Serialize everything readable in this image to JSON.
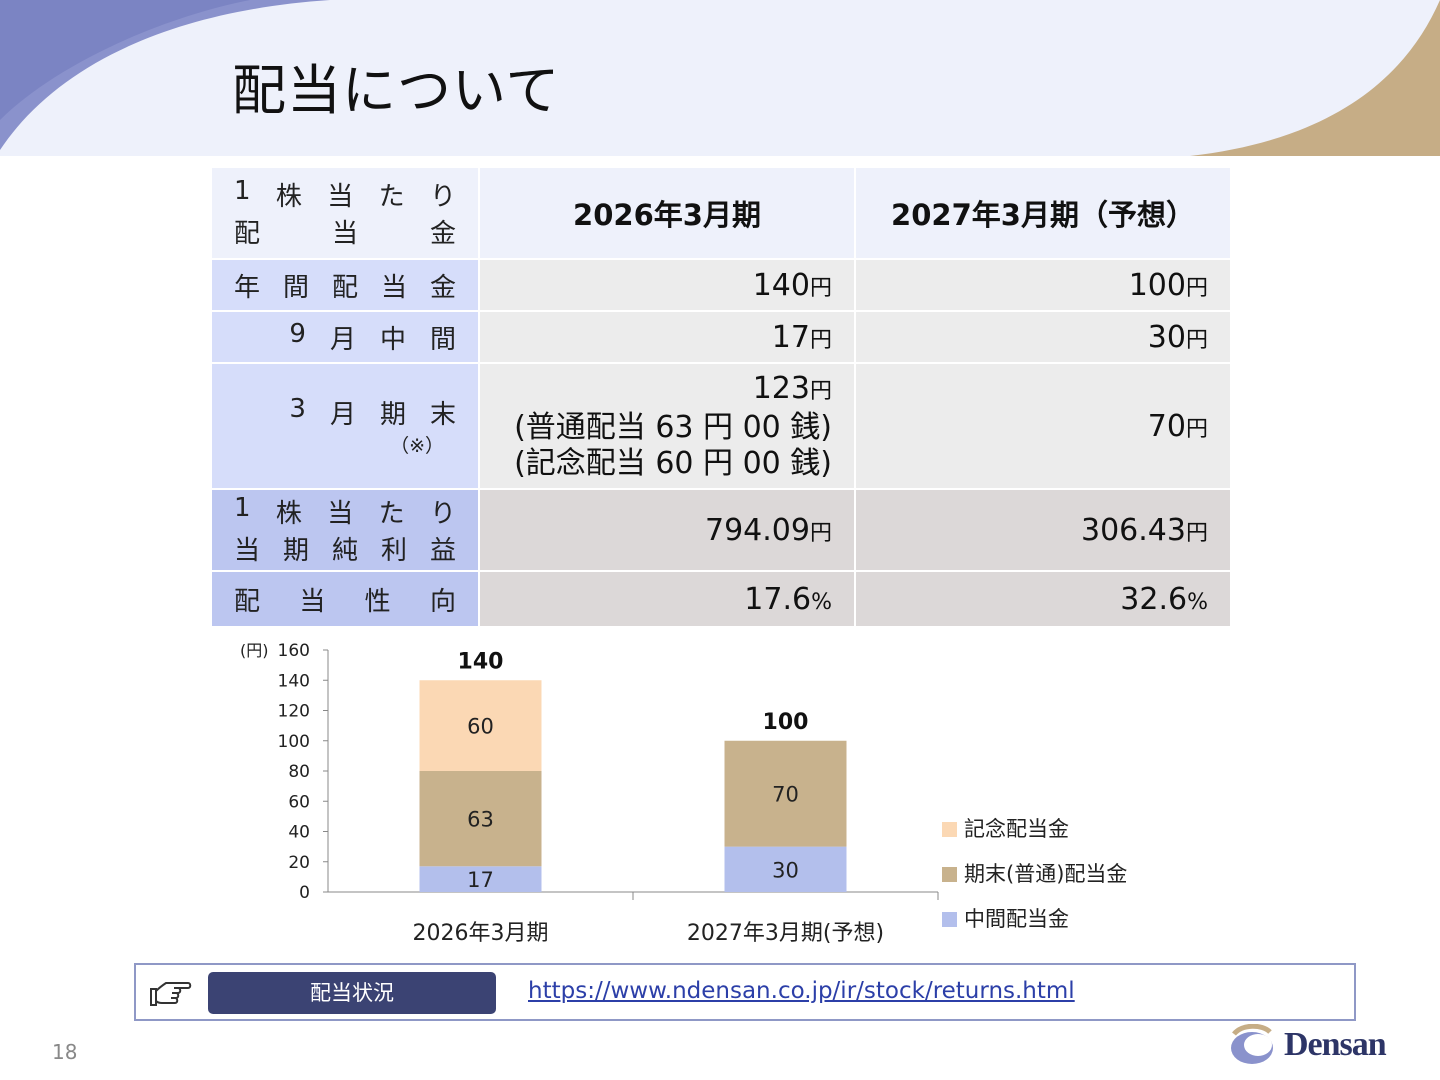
{
  "title": "配当について",
  "table": {
    "corner_line1": [
      "1",
      "株",
      "当",
      "た",
      "り"
    ],
    "corner_line2": [
      "配",
      "当",
      "金"
    ],
    "col1": "2026年3月期",
    "col2": "2027年3月期（予想）",
    "unit_yen": "円",
    "unit_pct": "%",
    "rows": {
      "annual": {
        "label": [
          "年",
          "間",
          "配",
          "当",
          "金"
        ],
        "v1": "140",
        "v2": "100"
      },
      "interim": {
        "label": [
          "9",
          "月",
          "中",
          "間"
        ],
        "v1": "17",
        "v2": "30"
      },
      "yearend": {
        "label": [
          "3",
          "月",
          "期",
          "末"
        ],
        "note": "（※）",
        "v1": "123",
        "v1_line2": "(普通配当 63 円 00 銭)",
        "v1_line3": "(記念配当 60 円 00 銭)",
        "v2": "70"
      },
      "eps": {
        "label_line1": [
          "1",
          "株",
          "当",
          "た",
          "り"
        ],
        "label_line2": [
          "当",
          "期",
          "純",
          "利",
          "益"
        ],
        "v1": "794.09",
        "v2": "306.43"
      },
      "payout": {
        "label": [
          "配",
          "当",
          "性",
          "向"
        ],
        "v1": "17.6",
        "v2": "32.6"
      }
    }
  },
  "chart_data": {
    "type": "bar",
    "stacked": true,
    "unit_label": "(円)",
    "categories": [
      "2026年3月期",
      "2027年3月期(予想)"
    ],
    "series": [
      {
        "name": "中間配当金",
        "values": [
          17,
          30
        ],
        "color": "#b3bfec"
      },
      {
        "name": "期末(普通)配当金",
        "values": [
          63,
          70
        ],
        "color": "#c8b28d"
      },
      {
        "name": "記念配当金",
        "values": [
          60,
          0
        ],
        "color": "#fbd8b4"
      }
    ],
    "totals": [
      140,
      100
    ],
    "ylim": [
      0,
      160
    ],
    "yticks": [
      0,
      20,
      40,
      60,
      80,
      100,
      120,
      140,
      160
    ],
    "grid": false,
    "legend_position": "right"
  },
  "link_bar": {
    "button_label": "配当状況",
    "url": "https://www.ndensan.co.jp/ir/stock/returns.html",
    "icon": "pointing-hand-icon"
  },
  "page_number": "18",
  "logo_text": "Densan",
  "colors": {
    "header_band": "#eef1fb",
    "header_swoosh": "#7d86c6",
    "header_gold": "#c6ad86",
    "label_cell": "#d6ddfa",
    "button": "#3b4373"
  }
}
